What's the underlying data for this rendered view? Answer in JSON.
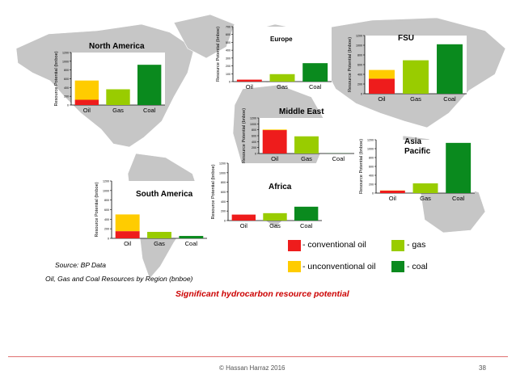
{
  "colors": {
    "conventional_oil": "#ee1c1c",
    "unconventional_oil": "#ffcc00",
    "gas": "#99cc00",
    "coal": "#0a8a1e",
    "map_land": "#c6c6c6",
    "map_sea": "#ffffff",
    "accent": "#cc0000",
    "footer_line": "#e07070"
  },
  "legend": {
    "conventional_oil": "- conventional oil",
    "unconventional_oil": "- unconventional oil",
    "gas": "- gas",
    "coal": "- coal"
  },
  "source": "Source: BP Data",
  "caption": "Oil, Gas and Coal Resources by Region (bnboe)",
  "subtitle": "Significant hydrocarbon resource potential",
  "footer": {
    "author": "© Hassan Harraz 2016",
    "page": "38"
  },
  "chart_data": [
    {
      "region": "north-america",
      "title": "North America",
      "type": "bar",
      "ylabel": "Resource Potential (bnboe)",
      "ylim": [
        0,
        1200
      ],
      "yticks": [
        "0",
        "200",
        "400",
        "600",
        "800",
        "1000",
        "1200"
      ],
      "categories": [
        "Oil",
        "Gas",
        "Coal"
      ],
      "values": [
        {
          "conventional": 120,
          "unconventional": 440
        },
        360,
        920
      ]
    },
    {
      "region": "europe",
      "title": "Europe",
      "type": "bar",
      "ylabel": "Resource Potential (bnboe)",
      "ylim": [
        0,
        700
      ],
      "yticks": [
        "0",
        "100",
        "200",
        "300",
        "400",
        "500",
        "600",
        "700"
      ],
      "categories": [
        "Oil",
        "Gas",
        "Coal"
      ],
      "values": [
        {
          "conventional": 25,
          "unconventional": 0
        },
        95,
        235
      ]
    },
    {
      "region": "fsu",
      "title": "FSU",
      "type": "bar",
      "ylabel": "Resource Potential (bnboe)",
      "ylim": [
        0,
        1200
      ],
      "yticks": [
        "0",
        "200",
        "400",
        "600",
        "800",
        "1000",
        "1200"
      ],
      "categories": [
        "Oil",
        "Gas",
        "Coal"
      ],
      "values": [
        {
          "conventional": 310,
          "unconventional": 180
        },
        690,
        1020
      ]
    },
    {
      "region": "middle-east",
      "title": "Middle East",
      "type": "bar",
      "ylabel": "Resource Potential (bnboe)",
      "ylim": [
        0,
        1200
      ],
      "yticks": [
        "0",
        "200",
        "400",
        "600",
        "800",
        "1000",
        "1200"
      ],
      "categories": [
        "Oil",
        "Gas",
        "Coal"
      ],
      "values": [
        {
          "conventional": 790,
          "unconventional": 20
        },
        580,
        5
      ]
    },
    {
      "region": "asia-pacific",
      "title": "Asia Pacific",
      "type": "bar",
      "ylabel": "Resource Potential (bnboe)",
      "ylim": [
        0,
        1200
      ],
      "yticks": [
        "0",
        "200",
        "400",
        "600",
        "800",
        "1000",
        "1200"
      ],
      "categories": [
        "Oil",
        "Gas",
        "Coal"
      ],
      "values": [
        {
          "conventional": 55,
          "unconventional": 5
        },
        220,
        1130
      ]
    },
    {
      "region": "south-america",
      "title": "South America",
      "type": "bar",
      "ylabel": "Resource Potential (bnboe)",
      "ylim": [
        0,
        1200
      ],
      "yticks": [
        "0",
        "200",
        "400",
        "600",
        "800",
        "1000",
        "1200"
      ],
      "categories": [
        "Oil",
        "Gas",
        "Coal"
      ],
      "values": [
        {
          "conventional": 150,
          "unconventional": 350
        },
        135,
        50
      ]
    },
    {
      "region": "africa",
      "title": "Africa",
      "type": "bar",
      "ylabel": "Resource Potential (bnboe)",
      "ylim": [
        0,
        1200
      ],
      "yticks": [
        "0",
        "200",
        "400",
        "600",
        "800",
        "1000",
        "1200"
      ],
      "categories": [
        "Oil",
        "Gas",
        "Coal"
      ],
      "values": [
        {
          "conventional": 125,
          "unconventional": 0
        },
        155,
        290
      ]
    }
  ]
}
